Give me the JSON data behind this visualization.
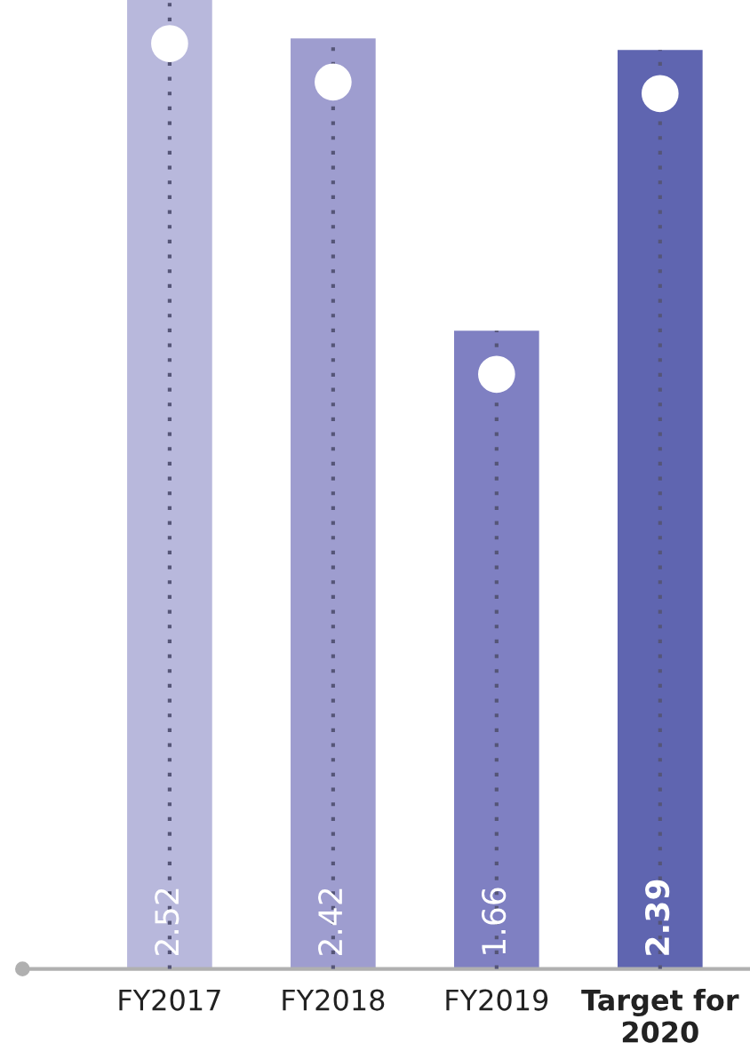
{
  "chart_data": {
    "type": "bar",
    "categories": [
      "FY2017",
      "FY2018",
      "FY2019",
      "Target for\n2020"
    ],
    "values": [
      2.52,
      2.42,
      1.66,
      2.39
    ],
    "colors": [
      "#b8b8dc",
      "#9e9dcf",
      "#7f80c2",
      "#5f65b0"
    ],
    "data_labels": true,
    "grid": "x",
    "legend": false
  }
}
